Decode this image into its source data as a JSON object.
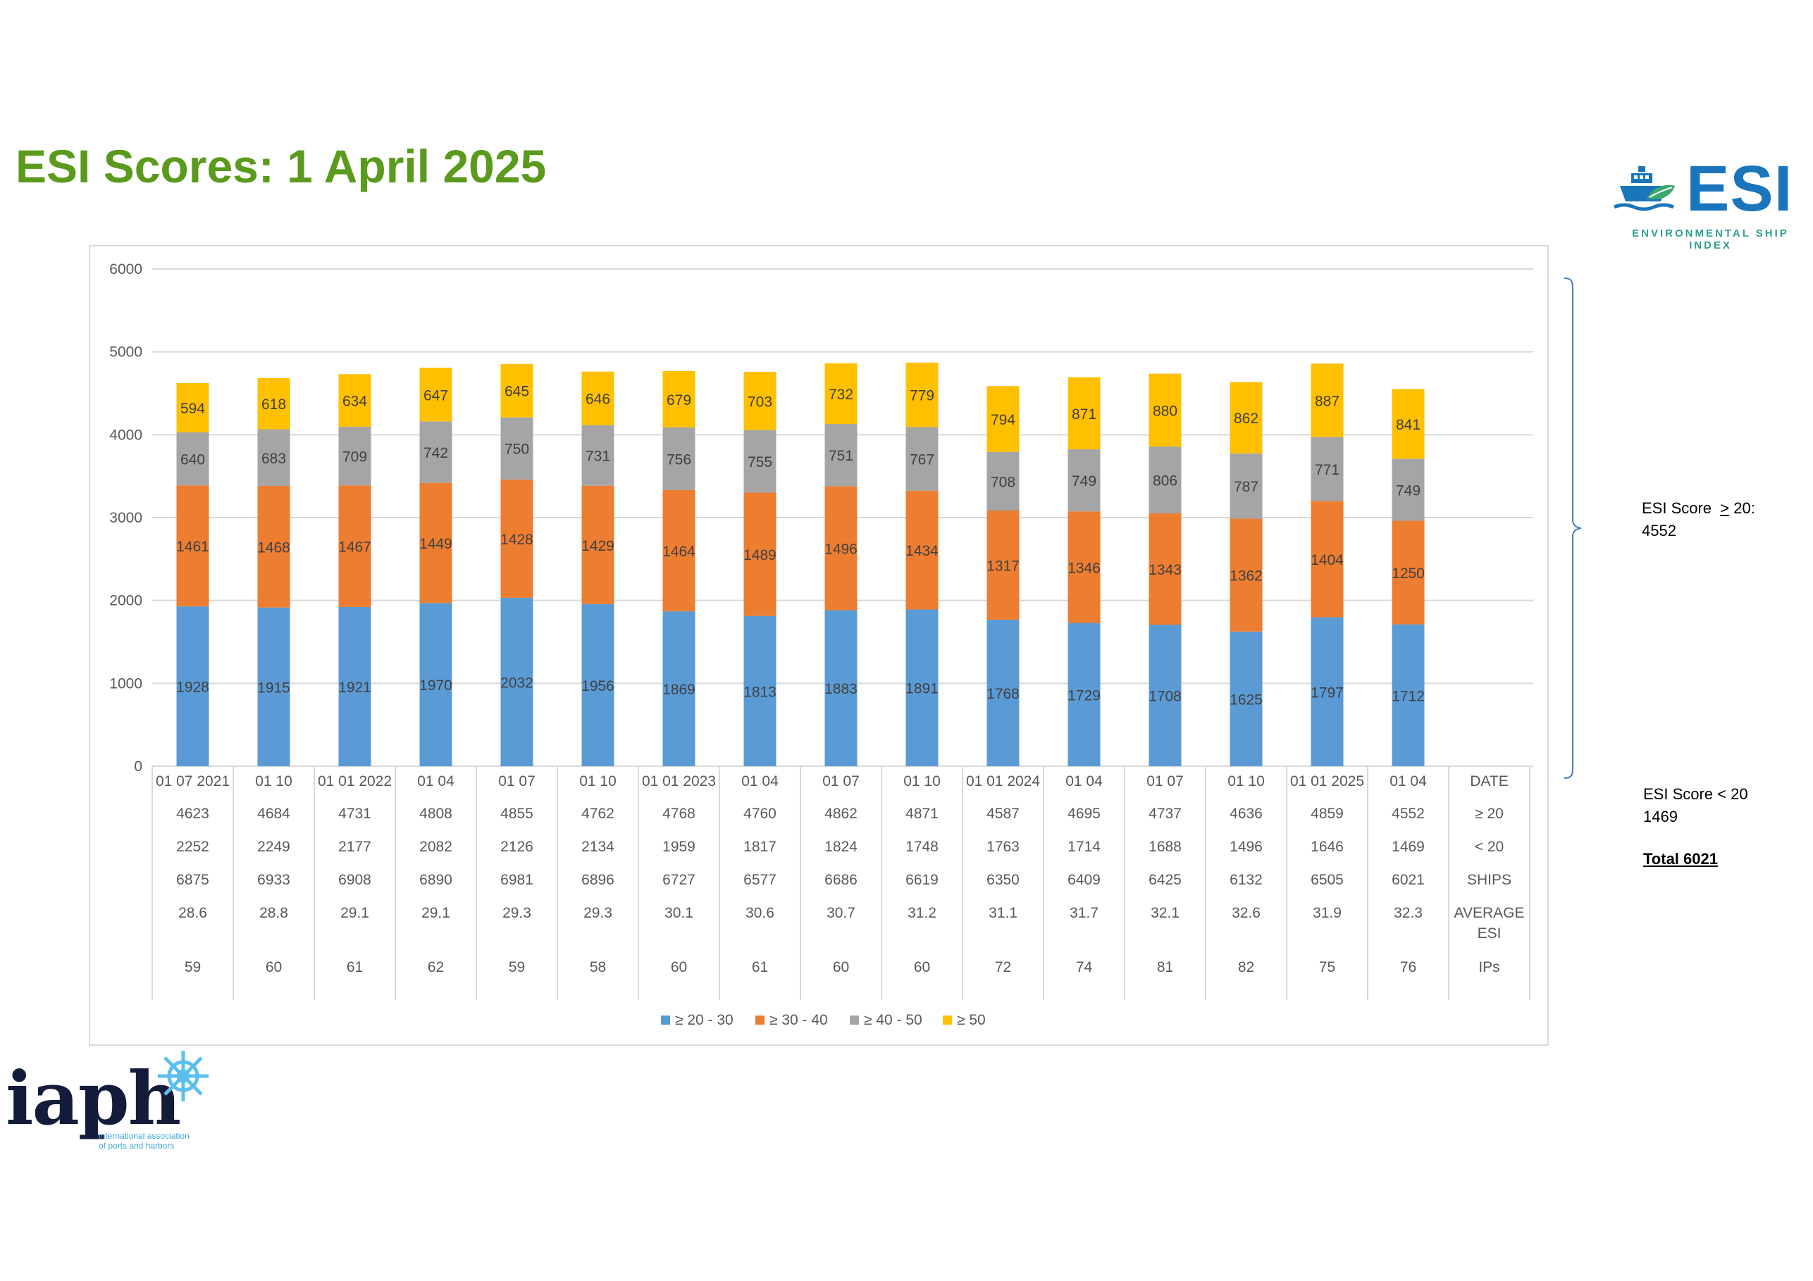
{
  "title": "ESI Scores: 1 April 2025",
  "logo": {
    "text": "ESI",
    "subtitle": "ENVIRONMENTAL SHIP INDEX",
    "icon": "ship-icon",
    "color": "#1b75bb",
    "accent": "#2f9e8f"
  },
  "side_notes": {
    "ge20_prefix": "ESI Score",
    "ge20_symbol": ">",
    "ge20_value": "20:",
    "ge20_count": "4552",
    "lt20_label": "ESI Score < 20",
    "lt20_count": "1469",
    "total": "Total 6021"
  },
  "iaph": {
    "word": "iaph",
    "line1": "international association",
    "line2": "of ports and harbors",
    "icon": "ship-wheel-icon"
  },
  "chart_data": {
    "type": "bar",
    "stacked": true,
    "ylim": [
      0,
      6000
    ],
    "yticks": [
      0,
      1000,
      2000,
      3000,
      4000,
      5000,
      6000
    ],
    "grid": true,
    "legend_position": "bottom",
    "categories": [
      "01 07 2021",
      "01 10",
      "01 01 2022",
      "01 04",
      "01 07",
      "01 10",
      "01 01 2023",
      "01 04",
      "01 07",
      "01 10",
      "01 01 2024",
      "01 04",
      "01 07",
      "01 10",
      "01 01 2025",
      "01 04"
    ],
    "series": [
      {
        "name": "≥ 20 - 30",
        "color": "#5b9bd5",
        "values": [
          1928,
          1915,
          1921,
          1970,
          2032,
          1956,
          1869,
          1813,
          1883,
          1891,
          1768,
          1729,
          1708,
          1625,
          1797,
          1712
        ]
      },
      {
        "name": "≥  30 - 40",
        "color": "#ed7d31",
        "values": [
          1461,
          1468,
          1467,
          1449,
          1428,
          1429,
          1464,
          1489,
          1496,
          1434,
          1317,
          1346,
          1343,
          1362,
          1404,
          1250
        ]
      },
      {
        "name": "≥  40 - 50",
        "color": "#a5a5a5",
        "values": [
          640,
          683,
          709,
          742,
          750,
          731,
          756,
          755,
          751,
          767,
          708,
          749,
          806,
          787,
          771,
          749
        ]
      },
      {
        "name": "≥  50",
        "color": "#ffc000",
        "values": [
          594,
          618,
          634,
          647,
          645,
          646,
          679,
          703,
          732,
          779,
          794,
          871,
          880,
          862,
          887,
          841
        ]
      }
    ],
    "table": {
      "header_label": "DATE",
      "rows": [
        {
          "label": "≥ 20",
          "values": [
            "4623",
            "4684",
            "4731",
            "4808",
            "4855",
            "4762",
            "4768",
            "4760",
            "4862",
            "4871",
            "4587",
            "4695",
            "4737",
            "4636",
            "4859",
            "4552"
          ]
        },
        {
          "label": "< 20",
          "values": [
            "2252",
            "2249",
            "2177",
            "2082",
            "2126",
            "2134",
            "1959",
            "1817",
            "1824",
            "1748",
            "1763",
            "1714",
            "1688",
            "1496",
            "1646",
            "1469"
          ]
        },
        {
          "label": "SHIPS",
          "values": [
            "6875",
            "6933",
            "6908",
            "6890",
            "6981",
            "6896",
            "6727",
            "6577",
            "6686",
            "6619",
            "6350",
            "6409",
            "6425",
            "6132",
            "6505",
            "6021"
          ]
        },
        {
          "label": "AVERAGE\nESI",
          "values": [
            "28.6",
            "28.8",
            "29.1",
            "29.1",
            "29.3",
            "29.3",
            "30.1",
            "30.6",
            "30.7",
            "31.2",
            "31.1",
            "31.7",
            "32.1",
            "32.6",
            "31.9",
            "32.3"
          ]
        },
        {
          "label": "IPs",
          "values": [
            "59",
            "60",
            "61",
            "62",
            "59",
            "58",
            "60",
            "61",
            "60",
            "60",
            "72",
            "74",
            "81",
            "82",
            "75",
            "76"
          ]
        }
      ]
    }
  }
}
